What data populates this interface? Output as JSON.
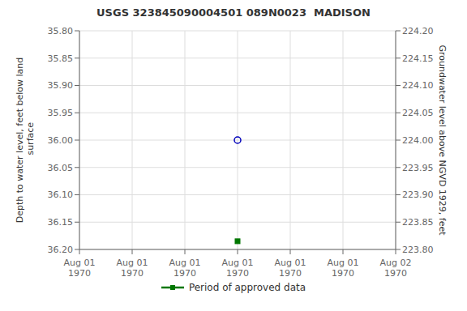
{
  "chart_data": {
    "type": "scatter",
    "title": "USGS 323845090004501 089N0023  MADISON",
    "y_label": "Depth to water level, feet below land\n surface",
    "y2_label": "Groundwater level above NGVD 1929, feet",
    "categories": [
      "Aug 01\n1970",
      "Aug 01\n1970",
      "Aug 01\n1970",
      "Aug 01\n1970",
      "Aug 01\n1970",
      "Aug 01\n1970",
      "Aug 02\n1970"
    ],
    "series": [
      {
        "color": "#0000bb",
        "marker": "circle",
        "values": [
          null,
          null,
          null,
          36.0,
          null,
          null,
          null
        ]
      },
      {
        "name": "Period of approved data",
        "color": "#007700",
        "marker": "square",
        "values": [
          null,
          null,
          null,
          36.185,
          null,
          null,
          null
        ]
      }
    ],
    "ylim": [
      36.2,
      35.8
    ],
    "yticks": [
      {
        "value": 35.8,
        "label": "35.80"
      },
      {
        "value": 35.85,
        "label": "35.85"
      },
      {
        "value": 35.9,
        "label": "35.90"
      },
      {
        "value": 35.95,
        "label": "35.95"
      },
      {
        "value": 36.0,
        "label": "36.00"
      },
      {
        "value": 36.05,
        "label": "36.05"
      },
      {
        "value": 36.1,
        "label": "36.10"
      },
      {
        "value": 36.15,
        "label": "36.15"
      },
      {
        "value": 36.2,
        "label": "36.20"
      }
    ],
    "y2lim": [
      223.8,
      224.2
    ],
    "y2ticks": [
      {
        "value": 224.2,
        "label": "224.20"
      },
      {
        "value": 224.15,
        "label": "224.15"
      },
      {
        "value": 224.1,
        "label": "224.10"
      },
      {
        "value": 224.05,
        "label": "224.05"
      },
      {
        "value": 224.0,
        "label": "224.00"
      },
      {
        "value": 223.95,
        "label": "223.95"
      },
      {
        "value": 223.9,
        "label": "223.90"
      },
      {
        "value": 223.85,
        "label": "223.85"
      },
      {
        "value": 223.8,
        "label": "223.80"
      }
    ],
    "grid": true
  }
}
